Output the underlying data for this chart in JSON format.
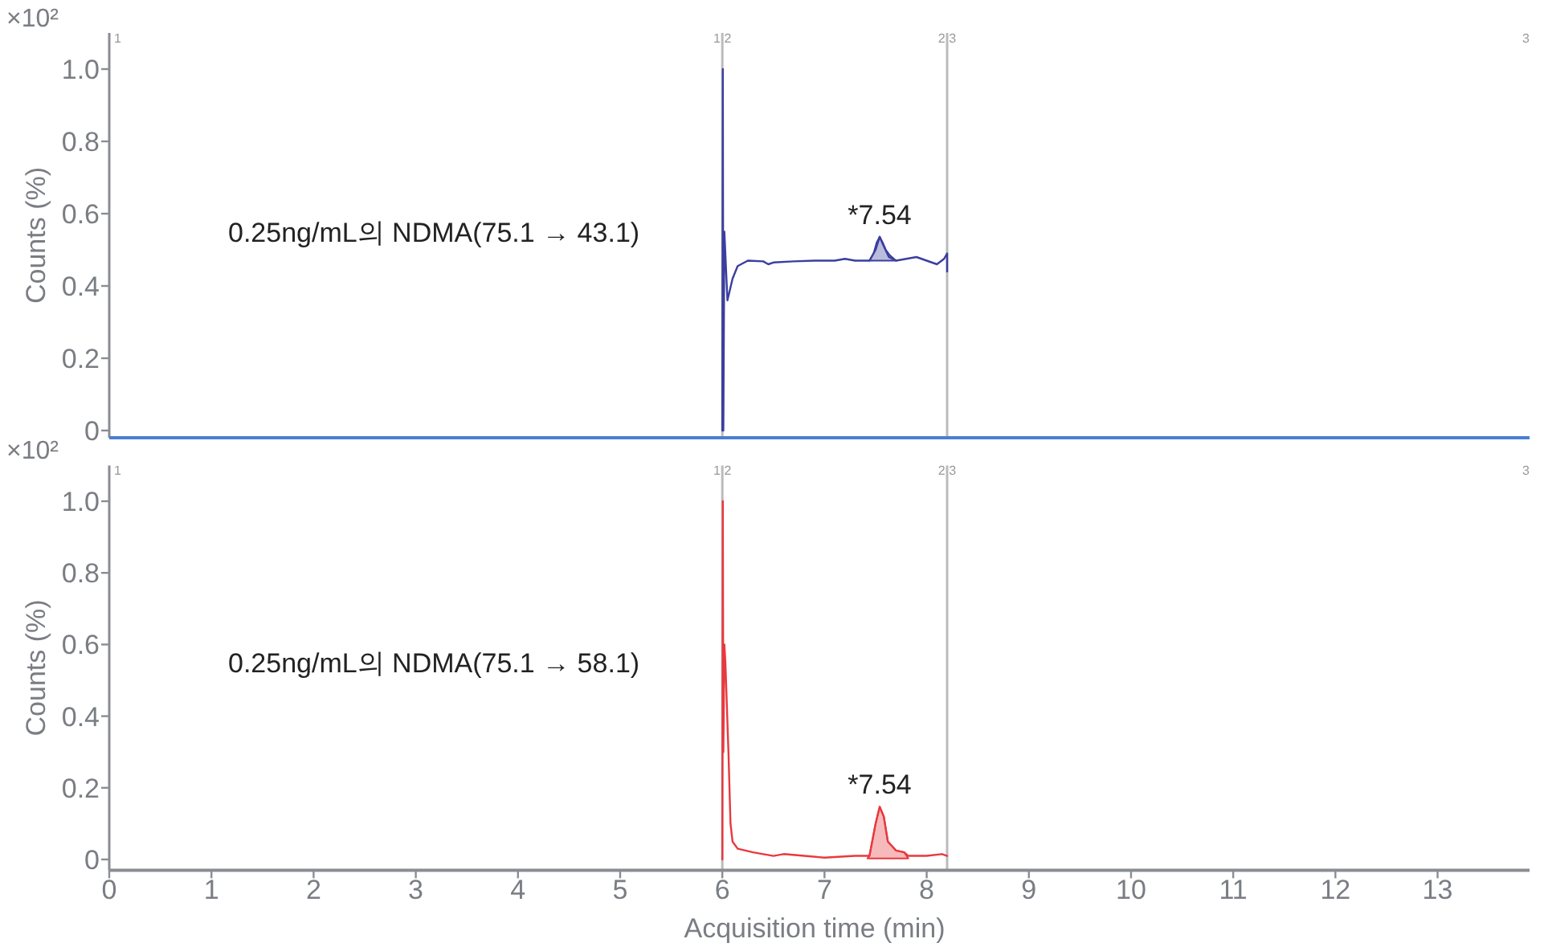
{
  "chart_data": [
    {
      "type": "line",
      "ylabel": "Counts (%)",
      "xlim": [
        0,
        13.9
      ],
      "ylim": [
        -0.02,
        1.1
      ],
      "yticks": [
        0,
        0.2,
        0.4,
        0.6,
        0.8,
        {
          "value": 1,
          "label": "1.0"
        }
      ],
      "tick_labels": "y",
      "series": [
        {
          "type": "line",
          "color": "#3a3f9e",
          "x": [
            6.0,
            6.005,
            6.01,
            6.02,
            6.05,
            6.1,
            6.15,
            6.25,
            6.4,
            6.45,
            6.5,
            6.7,
            6.9,
            7.1,
            7.2,
            7.3,
            7.44,
            7.5,
            7.54,
            7.58,
            7.63,
            7.7,
            7.8,
            7.9,
            8.0,
            8.1,
            8.17,
            8.2,
            8.2
          ],
          "values": [
            0,
            1.0,
            0.0,
            0.55,
            0.36,
            0.42,
            0.455,
            0.47,
            0.468,
            0.46,
            0.465,
            0.468,
            0.47,
            0.47,
            0.475,
            0.47,
            0.47,
            0.5,
            0.536,
            0.51,
            0.48,
            0.47,
            0.475,
            0.48,
            0.47,
            0.46,
            0.475,
            0.49,
            0.44
          ]
        },
        {
          "type": "area",
          "color": "#3a3f9e",
          "x": [
            7.44,
            7.48,
            7.51,
            7.54,
            7.57,
            7.6,
            7.64,
            7.7
          ],
          "values": [
            0.47,
            0.49,
            0.52,
            0.536,
            0.52,
            0.5,
            0.485,
            0.47
          ]
        }
      ],
      "ref_lines": [
        {
          "axis": "x",
          "value": 6.0,
          "color": "#bbbbbb"
        },
        {
          "axis": "x",
          "value": 8.2,
          "color": "#bbbbbb"
        }
      ],
      "annotations": [
        "×10²",
        "0.25ng/mL의 NDMA(75.1 → 43.1)",
        {
          "text": "*7.54",
          "x": 7.54,
          "y": 0.536
        },
        "1",
        "1 2",
        "2 3",
        "3"
      ]
    },
    {
      "type": "line",
      "ylabel": "Counts (%)",
      "xlabel": "Acquisition time (min)",
      "xlim": [
        0,
        13.9
      ],
      "ylim": [
        -0.03,
        1.1
      ],
      "yticks": [
        0,
        0.2,
        0.4,
        0.6,
        0.8,
        {
          "value": 1,
          "label": "1.0"
        }
      ],
      "xticks": [
        0,
        1,
        2,
        3,
        4,
        5,
        6,
        7,
        8,
        9,
        10,
        11,
        12,
        13
      ],
      "series": [
        {
          "type": "line",
          "color": "#e8393e",
          "x": [
            6.0,
            6.005,
            6.01,
            6.02,
            6.03,
            6.06,
            6.08,
            6.1,
            6.15,
            6.3,
            6.5,
            6.6,
            7.0,
            7.3,
            7.44,
            7.5,
            7.54,
            7.58,
            7.62,
            7.7,
            7.78,
            7.82,
            8.0,
            8.15,
            8.2
          ],
          "values": [
            0,
            1.0,
            0.3,
            0.6,
            0.55,
            0.3,
            0.1,
            0.05,
            0.03,
            0.02,
            0.01,
            0.015,
            0.005,
            0.01,
            0.01,
            0.1,
            0.147,
            0.12,
            0.05,
            0.025,
            0.02,
            0.01,
            0.01,
            0.015,
            0.01
          ]
        },
        {
          "type": "area",
          "color": "#e8393e",
          "x": [
            7.42,
            7.44,
            7.5,
            7.54,
            7.58,
            7.62,
            7.7,
            7.78,
            7.82
          ],
          "values": [
            0.003,
            0.01,
            0.1,
            0.147,
            0.12,
            0.05,
            0.025,
            0.02,
            0.003
          ]
        }
      ],
      "ref_lines": [
        {
          "axis": "x",
          "value": 6.0,
          "color": "#bbbbbb"
        },
        {
          "axis": "x",
          "value": 8.2,
          "color": "#bbbbbb"
        }
      ],
      "annotations": [
        "×10²",
        "0.25ng/mL의 NDMA(75.1 → 58.1)",
        {
          "text": "*7.54",
          "x": 7.54,
          "y": 0.147
        },
        "1",
        "1 2",
        "2 3",
        "3"
      ]
    }
  ]
}
